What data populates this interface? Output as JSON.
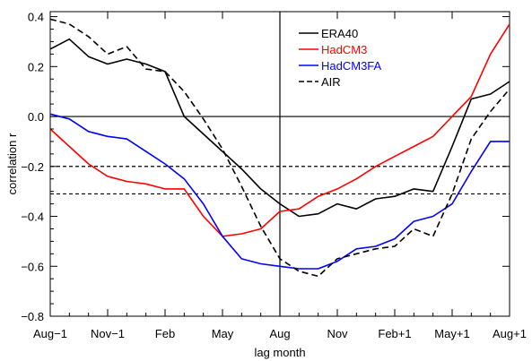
{
  "chart_data": {
    "type": "line",
    "xlabel": "lag month",
    "ylabel": "correlation r",
    "xlim": [
      -12,
      12
    ],
    "ylim": [
      -0.8,
      0.42
    ],
    "x_ticks": [
      {
        "value": -12,
        "label": "Aug−1"
      },
      {
        "value": -9,
        "label": "Nov−1"
      },
      {
        "value": -6,
        "label": "Feb"
      },
      {
        "value": -3,
        "label": "May"
      },
      {
        "value": 0,
        "label": "Aug"
      },
      {
        "value": 3,
        "label": "Nov"
      },
      {
        "value": 6,
        "label": "Feb+1"
      },
      {
        "value": 9,
        "label": "May+1"
      },
      {
        "value": 12,
        "label": "Aug+1"
      }
    ],
    "y_ticks": [
      {
        "value": -0.8,
        "label": "−0.8"
      },
      {
        "value": -0.6,
        "label": "−0.6"
      },
      {
        "value": -0.4,
        "label": "−0.4"
      },
      {
        "value": -0.2,
        "label": "−0.2"
      },
      {
        "value": 0.0,
        "label": "0.0"
      },
      {
        "value": 0.2,
        "label": "0.2"
      },
      {
        "value": 0.4,
        "label": "0.4"
      }
    ],
    "reference_lines": {
      "horizontal_solid": [
        0.0
      ],
      "horizontal_dashed": [
        -0.2,
        -0.31
      ],
      "vertical_solid": [
        0
      ]
    },
    "legend_position": "top-center",
    "x": [
      -12,
      -11,
      -10,
      -9,
      -8,
      -7,
      -6,
      -5,
      -4,
      -3,
      -2,
      -1,
      0,
      1,
      2,
      3,
      4,
      5,
      6,
      7,
      8,
      9,
      10,
      11,
      12
    ],
    "series": [
      {
        "name": "ERA40",
        "color": "#000000",
        "dash": "solid",
        "values": [
          0.27,
          0.31,
          0.24,
          0.21,
          0.23,
          0.21,
          0.18,
          0.0,
          -0.07,
          -0.14,
          -0.21,
          -0.29,
          -0.35,
          -0.4,
          -0.39,
          -0.35,
          -0.37,
          -0.33,
          -0.32,
          -0.29,
          -0.3,
          -0.12,
          0.07,
          0.09,
          0.14
        ]
      },
      {
        "name": "HadCM3",
        "color": "#ff0000",
        "dash": "solid",
        "values": [
          -0.05,
          -0.12,
          -0.19,
          -0.24,
          -0.26,
          -0.27,
          -0.29,
          -0.29,
          -0.4,
          -0.48,
          -0.47,
          -0.45,
          -0.38,
          -0.37,
          -0.32,
          -0.29,
          -0.25,
          -0.2,
          -0.16,
          -0.12,
          -0.08,
          0.0,
          0.08,
          0.25,
          0.37
        ]
      },
      {
        "name": "HadCM3FA",
        "color": "#0000ff",
        "dash": "solid",
        "values": [
          0.01,
          -0.01,
          -0.06,
          -0.08,
          -0.09,
          -0.14,
          -0.19,
          -0.25,
          -0.35,
          -0.48,
          -0.57,
          -0.59,
          -0.6,
          -0.61,
          -0.61,
          -0.58,
          -0.53,
          -0.52,
          -0.49,
          -0.42,
          -0.4,
          -0.35,
          -0.22,
          -0.1,
          -0.1
        ]
      },
      {
        "name": "AIR",
        "color": "#000000",
        "dash": "dashed",
        "values": [
          0.39,
          0.37,
          0.32,
          0.25,
          0.28,
          0.19,
          0.18,
          0.1,
          -0.01,
          -0.13,
          -0.28,
          -0.44,
          -0.57,
          -0.62,
          -0.64,
          -0.57,
          -0.55,
          -0.53,
          -0.52,
          -0.45,
          -0.48,
          -0.31,
          -0.09,
          0.02,
          0.11
        ]
      }
    ]
  }
}
